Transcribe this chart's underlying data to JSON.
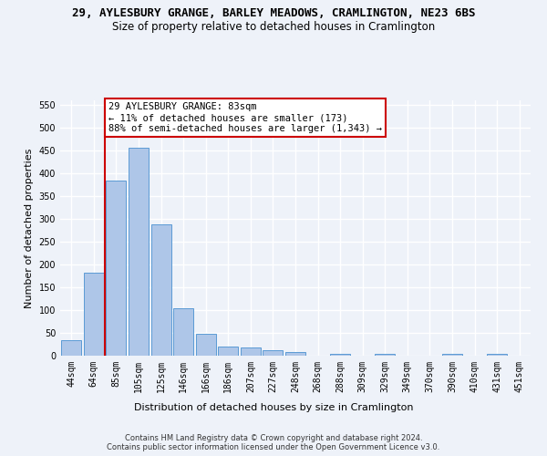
{
  "title_line1": "29, AYLESBURY GRANGE, BARLEY MEADOWS, CRAMLINGTON, NE23 6BS",
  "title_line2": "Size of property relative to detached houses in Cramlington",
  "xlabel": "Distribution of detached houses by size in Cramlington",
  "ylabel": "Number of detached properties",
  "categories": [
    "44sqm",
    "64sqm",
    "85sqm",
    "105sqm",
    "125sqm",
    "146sqm",
    "166sqm",
    "186sqm",
    "207sqm",
    "227sqm",
    "248sqm",
    "268sqm",
    "288sqm",
    "309sqm",
    "329sqm",
    "349sqm",
    "370sqm",
    "390sqm",
    "410sqm",
    "431sqm",
    "451sqm"
  ],
  "values": [
    35,
    183,
    385,
    457,
    289,
    104,
    48,
    21,
    19,
    13,
    9,
    0,
    5,
    0,
    5,
    0,
    0,
    4,
    0,
    4,
    0
  ],
  "bar_color": "#aec6e8",
  "bar_edgecolor": "#5b9bd5",
  "vline_index": 2,
  "vline_color": "#cc0000",
  "annotation_text": "29 AYLESBURY GRANGE: 83sqm\n← 11% of detached houses are smaller (173)\n88% of semi-detached houses are larger (1,343) →",
  "annotation_box_color": "#ffffff",
  "annotation_box_edgecolor": "#cc0000",
  "ylim": [
    0,
    560
  ],
  "yticks": [
    0,
    50,
    100,
    150,
    200,
    250,
    300,
    350,
    400,
    450,
    500,
    550
  ],
  "footer_text": "Contains HM Land Registry data © Crown copyright and database right 2024.\nContains public sector information licensed under the Open Government Licence v3.0.",
  "bg_color": "#eef2f9",
  "grid_color": "#ffffff",
  "title_fontsize": 9,
  "subtitle_fontsize": 8.5,
  "axis_label_fontsize": 8,
  "tick_fontsize": 7,
  "annotation_fontsize": 7.5,
  "footer_fontsize": 6
}
